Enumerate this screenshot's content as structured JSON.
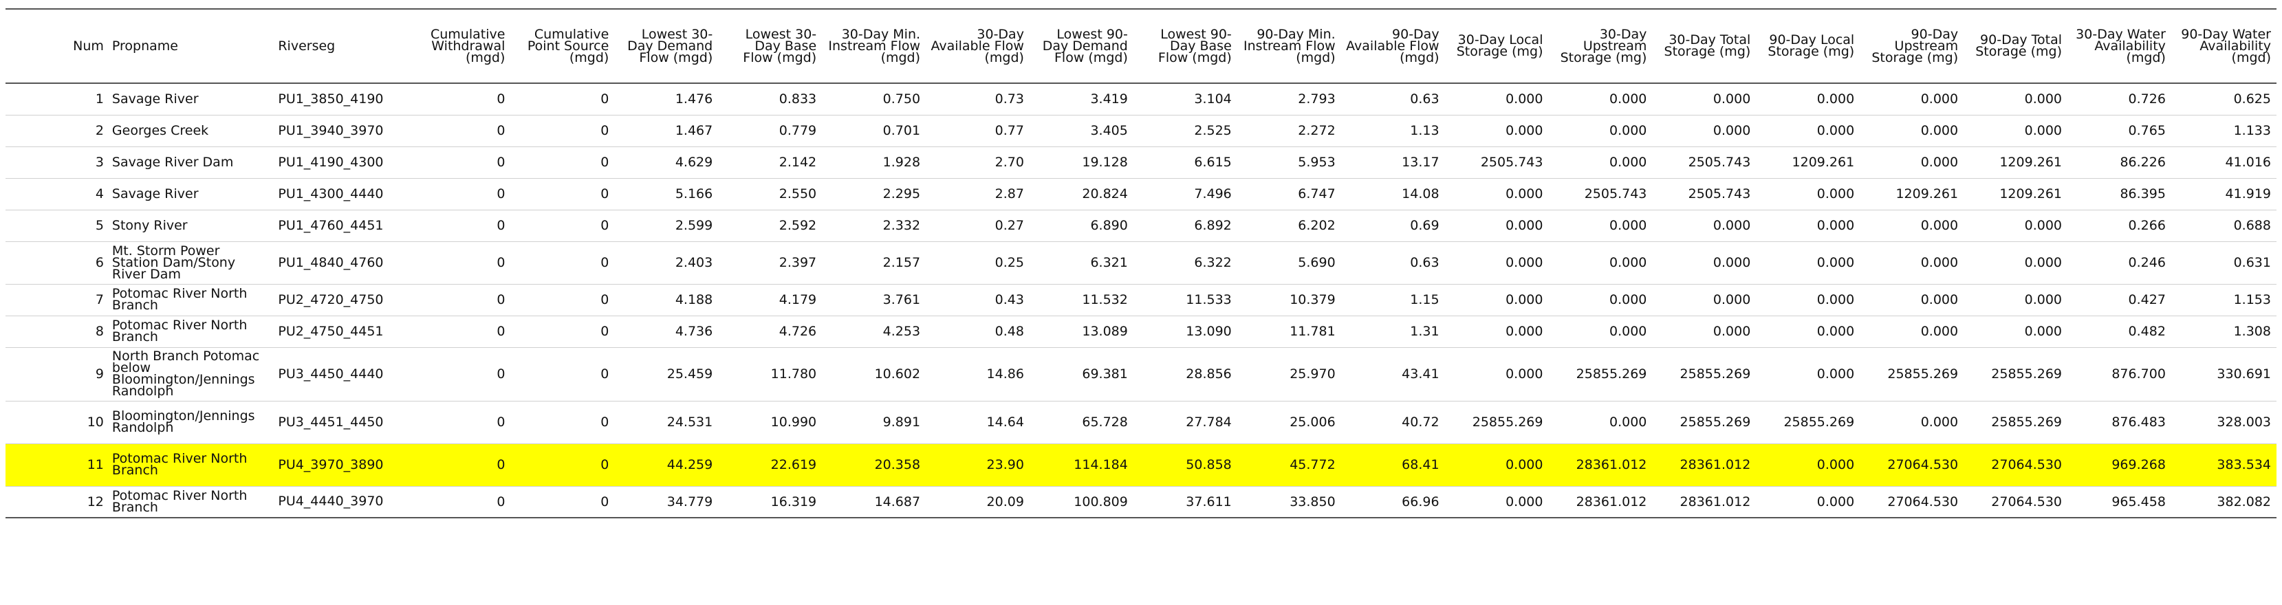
{
  "headers": [
    "Num",
    "Propname",
    "Riverseg",
    "Cumulative Withdrawal (mgd)",
    "Cumulative Point Source (mgd)",
    "Lowest 30-Day Demand Flow (mgd)",
    "Lowest 30-Day Base Flow (mgd)",
    "30-Day Min. Instream Flow (mgd)",
    "30-Day Available Flow (mgd)",
    "Lowest 90-Day Demand Flow (mgd)",
    "Lowest 90-Day Base Flow (mgd)",
    "90-Day Min. Instream Flow (mgd)",
    "90-Day Available Flow (mgd)",
    "30-Day Local Storage (mg)",
    "30-Day Upstream Storage (mg)",
    "30-Day Total Storage (mg)",
    "90-Day Local Storage (mg)",
    "90-Day Upstream Storage (mg)",
    "90-Day Total Storage (mg)",
    "30-Day Water Availability (mgd)",
    "90-Day Water Availability (mgd)"
  ],
  "highlight_color": "#ffff00",
  "rows": [
    [
      "1",
      "Savage River",
      "PU1_3850_4190",
      "0",
      "0",
      "1.476",
      "0.833",
      "0.750",
      "0.73",
      "3.419",
      "3.104",
      "2.793",
      "0.63",
      "0.000",
      "0.000",
      "0.000",
      "0.000",
      "0.000",
      "0.000",
      "0.726",
      "0.625"
    ],
    [
      "2",
      "Georges Creek",
      "PU1_3940_3970",
      "0",
      "0",
      "1.467",
      "0.779",
      "0.701",
      "0.77",
      "3.405",
      "2.525",
      "2.272",
      "1.13",
      "0.000",
      "0.000",
      "0.000",
      "0.000",
      "0.000",
      "0.000",
      "0.765",
      "1.133"
    ],
    [
      "3",
      "Savage River Dam",
      "PU1_4190_4300",
      "0",
      "0",
      "4.629",
      "2.142",
      "1.928",
      "2.70",
      "19.128",
      "6.615",
      "5.953",
      "13.17",
      "2505.743",
      "0.000",
      "2505.743",
      "1209.261",
      "0.000",
      "1209.261",
      "86.226",
      "41.016"
    ],
    [
      "4",
      "Savage River",
      "PU1_4300_4440",
      "0",
      "0",
      "5.166",
      "2.550",
      "2.295",
      "2.87",
      "20.824",
      "7.496",
      "6.747",
      "14.08",
      "0.000",
      "2505.743",
      "2505.743",
      "0.000",
      "1209.261",
      "1209.261",
      "86.395",
      "41.919"
    ],
    [
      "5",
      "Stony River",
      "PU1_4760_4451",
      "0",
      "0",
      "2.599",
      "2.592",
      "2.332",
      "0.27",
      "6.890",
      "6.892",
      "6.202",
      "0.69",
      "0.000",
      "0.000",
      "0.000",
      "0.000",
      "0.000",
      "0.000",
      "0.266",
      "0.688"
    ],
    [
      "6",
      "Mt. Storm Power Station Dam/Stony River Dam",
      "PU1_4840_4760",
      "0",
      "0",
      "2.403",
      "2.397",
      "2.157",
      "0.25",
      "6.321",
      "6.322",
      "5.690",
      "0.63",
      "0.000",
      "0.000",
      "0.000",
      "0.000",
      "0.000",
      "0.000",
      "0.246",
      "0.631"
    ],
    [
      "7",
      "Potomac River North Branch",
      "PU2_4720_4750",
      "0",
      "0",
      "4.188",
      "4.179",
      "3.761",
      "0.43",
      "11.532",
      "11.533",
      "10.379",
      "1.15",
      "0.000",
      "0.000",
      "0.000",
      "0.000",
      "0.000",
      "0.000",
      "0.427",
      "1.153"
    ],
    [
      "8",
      "Potomac River North Branch",
      "PU2_4750_4451",
      "0",
      "0",
      "4.736",
      "4.726",
      "4.253",
      "0.48",
      "13.089",
      "13.090",
      "11.781",
      "1.31",
      "0.000",
      "0.000",
      "0.000",
      "0.000",
      "0.000",
      "0.000",
      "0.482",
      "1.308"
    ],
    [
      "9",
      "North Branch Potomac below Bloomington/Jennings Randolph",
      "PU3_4450_4440",
      "0",
      "0",
      "25.459",
      "11.780",
      "10.602",
      "14.86",
      "69.381",
      "28.856",
      "25.970",
      "43.41",
      "0.000",
      "25855.269",
      "25855.269",
      "0.000",
      "25855.269",
      "25855.269",
      "876.700",
      "330.691"
    ],
    [
      "10",
      "Bloomington/Jennings Randolph",
      "PU3_4451_4450",
      "0",
      "0",
      "24.531",
      "10.990",
      "9.891",
      "14.64",
      "65.728",
      "27.784",
      "25.006",
      "40.72",
      "25855.269",
      "0.000",
      "25855.269",
      "25855.269",
      "0.000",
      "25855.269",
      "876.483",
      "328.003"
    ],
    [
      "11",
      "Potomac River North Branch",
      "PU4_3970_3890",
      "0",
      "0",
      "44.259",
      "22.619",
      "20.358",
      "23.90",
      "114.184",
      "50.858",
      "45.772",
      "68.41",
      "0.000",
      "28361.012",
      "28361.012",
      "0.000",
      "27064.530",
      "27064.530",
      "969.268",
      "383.534"
    ],
    [
      "12",
      "Potomac River North Branch",
      "PU4_4440_3970",
      "0",
      "0",
      "34.779",
      "16.319",
      "14.687",
      "20.09",
      "100.809",
      "37.611",
      "33.850",
      "66.96",
      "0.000",
      "28361.012",
      "28361.012",
      "0.000",
      "27064.530",
      "27064.530",
      "965.458",
      "382.082"
    ]
  ],
  "highlighted_row": 10
}
